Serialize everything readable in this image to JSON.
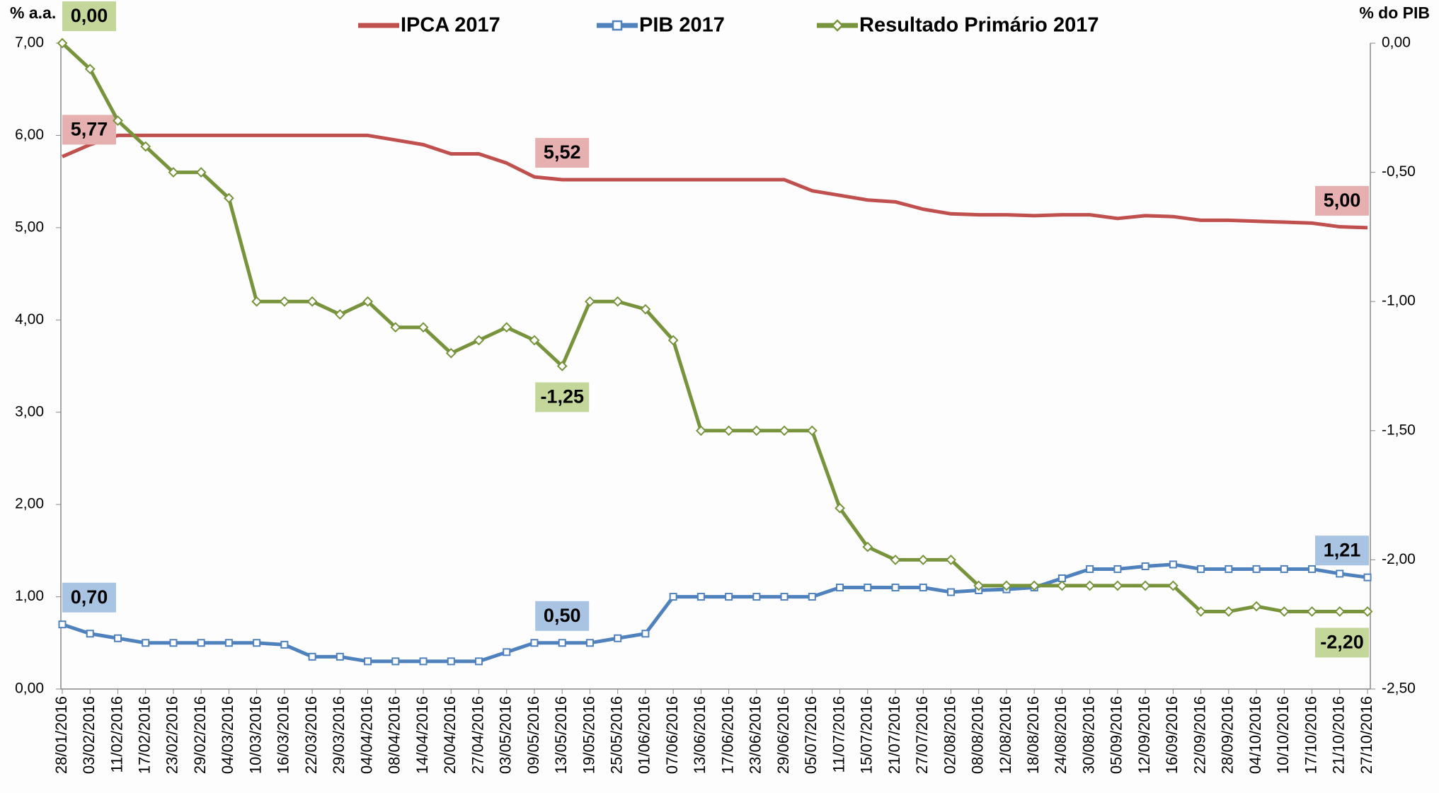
{
  "chart_data": {
    "type": "line",
    "y_label": "% a.a.",
    "y2_label": "% do PIB",
    "grid": false,
    "legend": "top",
    "categories": [
      "28/01/2016",
      "03/02/2016",
      "11/02/2016",
      "17/02/2016",
      "23/02/2016",
      "29/02/2016",
      "04/03/2016",
      "10/03/2016",
      "16/03/2016",
      "22/03/2016",
      "29/03/2016",
      "04/04/2016",
      "08/04/2016",
      "14/04/2016",
      "20/04/2016",
      "27/04/2016",
      "03/05/2016",
      "09/05/2016",
      "13/05/2016",
      "19/05/2016",
      "25/05/2016",
      "01/06/2016",
      "07/06/2016",
      "13/06/2016",
      "17/06/2016",
      "23/06/2016",
      "29/06/2016",
      "05/07/2016",
      "11/07/2016",
      "15/07/2016",
      "21/07/2016",
      "27/07/2016",
      "02/08/2016",
      "08/08/2016",
      "12/08/2016",
      "18/08/2016",
      "24/08/2016",
      "30/08/2016",
      "05/09/2016",
      "12/09/2016",
      "16/09/2016",
      "22/09/2016",
      "28/09/2016",
      "04/10/2016",
      "10/10/2016",
      "17/10/2016",
      "21/10/2016",
      "27/10/2016"
    ],
    "ylim": [
      0,
      7
    ],
    "yticks": [
      {
        "value": 0,
        "label": "0,00"
      },
      {
        "value": 1,
        "label": "1,00"
      },
      {
        "value": 2,
        "label": "2,00"
      },
      {
        "value": 3,
        "label": "3,00"
      },
      {
        "value": 4,
        "label": "4,00"
      },
      {
        "value": 5,
        "label": "5,00"
      },
      {
        "value": 6,
        "label": "6,00"
      },
      {
        "value": 7,
        "label": "7,00"
      }
    ],
    "y2lim": [
      -2.5,
      0
    ],
    "y2ticks": [
      {
        "value": -2.5,
        "label": "-2,50"
      },
      {
        "value": -2,
        "label": "-2,00"
      },
      {
        "value": -1.5,
        "label": "-1,50"
      },
      {
        "value": -1,
        "label": "-1,00"
      },
      {
        "value": -0.5,
        "label": "-0,50"
      },
      {
        "value": 0,
        "label": "0,00"
      }
    ],
    "series": [
      {
        "name": "IPCA 2017",
        "color": "#c0504d",
        "label_color": "#e6b0b0",
        "marker": "none",
        "axis": "y",
        "values": [
          5.77,
          5.9,
          6.0,
          6.0,
          6.0,
          6.0,
          6.0,
          6.0,
          6.0,
          6.0,
          6.0,
          6.0,
          5.95,
          5.9,
          5.8,
          5.8,
          5.7,
          5.55,
          5.52,
          5.52,
          5.52,
          5.52,
          5.52,
          5.52,
          5.52,
          5.52,
          5.52,
          5.4,
          5.35,
          5.3,
          5.28,
          5.2,
          5.15,
          5.14,
          5.14,
          5.13,
          5.14,
          5.14,
          5.1,
          5.13,
          5.12,
          5.08,
          5.08,
          5.07,
          5.06,
          5.05,
          5.01,
          5.0
        ],
        "value_labels": [
          "5,77",
          null,
          null,
          null,
          null,
          null,
          null,
          null,
          null,
          null,
          null,
          null,
          null,
          null,
          null,
          null,
          null,
          null,
          "5,52",
          null,
          null,
          null,
          null,
          null,
          null,
          null,
          null,
          null,
          null,
          null,
          null,
          null,
          null,
          null,
          null,
          null,
          null,
          null,
          null,
          null,
          null,
          null,
          null,
          null,
          null,
          null,
          null,
          "5,00"
        ]
      },
      {
        "name": "PIB 2017",
        "color": "#4f81bd",
        "label_color": "#a9c4e3",
        "marker": "square",
        "axis": "y",
        "values": [
          0.7,
          0.6,
          0.55,
          0.5,
          0.5,
          0.5,
          0.5,
          0.5,
          0.48,
          0.35,
          0.35,
          0.3,
          0.3,
          0.3,
          0.3,
          0.3,
          0.4,
          0.5,
          0.5,
          0.5,
          0.55,
          0.6,
          1.0,
          1.0,
          1.0,
          1.0,
          1.0,
          1.0,
          1.1,
          1.1,
          1.1,
          1.1,
          1.05,
          1.07,
          1.08,
          1.1,
          1.2,
          1.3,
          1.3,
          1.33,
          1.35,
          1.3,
          1.3,
          1.3,
          1.3,
          1.3,
          1.25,
          1.21
        ],
        "value_labels": [
          "0,70",
          null,
          null,
          null,
          null,
          null,
          null,
          null,
          null,
          null,
          null,
          null,
          null,
          null,
          null,
          null,
          null,
          null,
          "0,50",
          null,
          null,
          null,
          null,
          null,
          null,
          null,
          null,
          null,
          null,
          null,
          null,
          null,
          null,
          null,
          null,
          null,
          null,
          null,
          null,
          null,
          null,
          null,
          null,
          null,
          null,
          null,
          null,
          "1,21"
        ]
      },
      {
        "name": "Resultado Primário 2017",
        "color": "#77933c",
        "label_color": "#c4d79b",
        "marker": "diamond",
        "axis": "y2",
        "values": [
          0,
          -0.1,
          -0.3,
          -0.4,
          -0.5,
          -0.5,
          -0.6,
          -1.0,
          -1.0,
          -1.0,
          -1.05,
          -1.0,
          -1.1,
          -1.1,
          -1.2,
          -1.15,
          -1.1,
          -1.15,
          -1.25,
          -1.0,
          -1.0,
          -1.03,
          -1.15,
          -1.5,
          -1.5,
          -1.5,
          -1.5,
          -1.5,
          -1.8,
          -1.95,
          -2.0,
          -2.0,
          -2.0,
          -2.1,
          -2.1,
          -2.1,
          -2.1,
          -2.1,
          -2.1,
          -2.1,
          -2.1,
          -2.2,
          -2.2,
          -2.18,
          -2.2,
          -2.2,
          -2.2,
          -2.2
        ],
        "value_labels": [
          "0,00",
          null,
          null,
          null,
          null,
          null,
          null,
          null,
          null,
          null,
          null,
          null,
          null,
          null,
          null,
          null,
          null,
          null,
          "-1,25",
          null,
          null,
          null,
          null,
          null,
          null,
          null,
          null,
          null,
          null,
          null,
          null,
          null,
          null,
          null,
          null,
          null,
          null,
          null,
          null,
          null,
          null,
          null,
          null,
          null,
          null,
          null,
          null,
          "-2,20"
        ]
      }
    ]
  }
}
